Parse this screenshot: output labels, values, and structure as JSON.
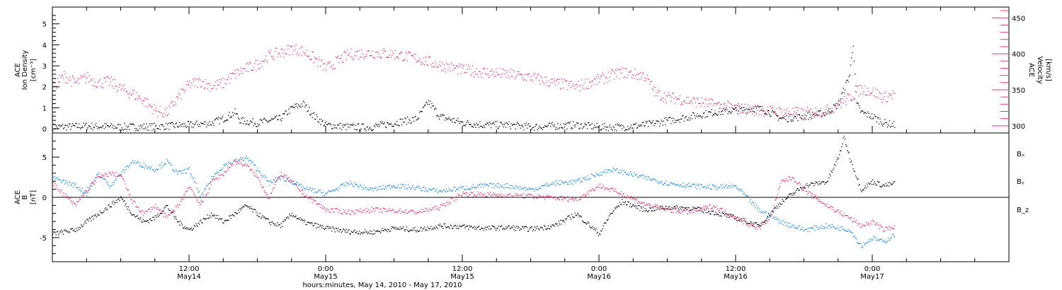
{
  "chart_data": [
    {
      "type": "scatter",
      "panel": "top",
      "ylabel_left": [
        "ACE",
        "Ion Density",
        "[cm⁻³]"
      ],
      "ylabel_right": [
        "ACE",
        "Velocity",
        "[km/s]"
      ],
      "ylim_left": [
        -0.2,
        5.8
      ],
      "ylim_right": [
        290,
        465
      ],
      "yticks_left": [
        0,
        1,
        2,
        3,
        4,
        5
      ],
      "yticks_right": [
        300,
        350,
        400,
        450
      ],
      "series": [
        {
          "axis": "left",
          "color": "#000000",
          "points": [
            [
              0,
              0.1
            ],
            [
              3,
              0.15
            ],
            [
              6,
              0.1
            ],
            [
              9,
              0.12
            ],
            [
              12,
              0.2
            ],
            [
              14,
              0.3
            ],
            [
              15,
              0.5
            ],
            [
              16,
              0.8
            ],
            [
              16.5,
              0.4
            ],
            [
              18,
              0.3
            ],
            [
              20,
              0.5
            ],
            [
              21,
              1.0
            ],
            [
              22,
              1.2
            ],
            [
              23,
              0.6
            ],
            [
              24,
              0.2
            ],
            [
              26,
              0.1
            ],
            [
              28,
              0.1
            ],
            [
              30,
              0.3
            ],
            [
              32,
              0.5
            ],
            [
              33,
              1.3
            ],
            [
              34,
              0.6
            ],
            [
              36,
              0.3
            ],
            [
              38,
              0.2
            ],
            [
              40,
              0.2
            ],
            [
              42,
              0.1
            ],
            [
              44,
              0.15
            ],
            [
              46,
              0.2
            ],
            [
              48,
              0.1
            ],
            [
              50,
              0.1
            ],
            [
              52,
              0.2
            ],
            [
              54,
              0.4
            ],
            [
              56,
              0.6
            ],
            [
              58,
              0.8
            ],
            [
              60,
              0.9
            ],
            [
              62,
              1.0
            ],
            [
              63,
              0.8
            ],
            [
              64,
              0.5
            ],
            [
              66,
              0.6
            ],
            [
              68,
              0.8
            ],
            [
              69,
              1.2
            ],
            [
              70,
              2.6
            ],
            [
              70.3,
              4.1
            ],
            [
              70.6,
              1.2
            ],
            [
              71,
              0.8
            ],
            [
              72,
              0.6
            ],
            [
              73,
              0.3
            ],
            [
              74,
              0.2
            ]
          ]
        },
        {
          "axis": "right",
          "color": "#e8336a",
          "points": [
            [
              0,
              355
            ],
            [
              1,
              370
            ],
            [
              2,
              360
            ],
            [
              3,
              368
            ],
            [
              4,
              360
            ],
            [
              5,
              362
            ],
            [
              6,
              352
            ],
            [
              7,
              345
            ],
            [
              8,
              336
            ],
            [
              9,
              322
            ],
            [
              10,
              318
            ],
            [
              11,
              340
            ],
            [
              12,
              358
            ],
            [
              13,
              362
            ],
            [
              14,
              355
            ],
            [
              15,
              360
            ],
            [
              16,
              372
            ],
            [
              17,
              380
            ],
            [
              18,
              386
            ],
            [
              19,
              398
            ],
            [
              20,
              402
            ],
            [
              21,
              408
            ],
            [
              22,
              404
            ],
            [
              23,
              394
            ],
            [
              24,
              380
            ],
            [
              26,
              400
            ],
            [
              28,
              402
            ],
            [
              30,
              400
            ],
            [
              32,
              394
            ],
            [
              34,
              385
            ],
            [
              36,
              378
            ],
            [
              38,
              375
            ],
            [
              40,
              372
            ],
            [
              42,
              368
            ],
            [
              44,
              360
            ],
            [
              46,
              355
            ],
            [
              48,
              365
            ],
            [
              50,
              375
            ],
            [
              52,
              370
            ],
            [
              53,
              345
            ],
            [
              54,
              340
            ],
            [
              55,
              338
            ],
            [
              56,
              335
            ],
            [
              58,
              330
            ],
            [
              60,
              325
            ],
            [
              62,
              322
            ],
            [
              64,
              320
            ],
            [
              66,
              318
            ],
            [
              67,
              320
            ],
            [
              68,
              322
            ],
            [
              69,
              330
            ],
            [
              70,
              340
            ],
            [
              71,
              352
            ],
            [
              72,
              348
            ],
            [
              73,
              340
            ],
            [
              74,
              345
            ]
          ]
        }
      ]
    },
    {
      "type": "scatter",
      "panel": "bottom",
      "ylabel": [
        "ACE",
        "B",
        "[nT]"
      ],
      "ylim": [
        -8,
        8
      ],
      "yticks": [
        -5,
        0,
        5
      ],
      "legend": [
        "Bₓ",
        "Bᵧ",
        "B_z"
      ],
      "legend_position": "right",
      "series": [
        {
          "name": "Bx",
          "color": "#000000",
          "points": [
            [
              0,
              -4.5
            ],
            [
              2,
              -4
            ],
            [
              3,
              -3
            ],
            [
              4,
              -2
            ],
            [
              5,
              -1
            ],
            [
              6,
              0
            ],
            [
              7,
              -2
            ],
            [
              8,
              -3
            ],
            [
              9,
              -2.5
            ],
            [
              10,
              -1
            ],
            [
              11,
              -3
            ],
            [
              12,
              -4
            ],
            [
              13,
              -3
            ],
            [
              14,
              -2
            ],
            [
              15,
              -3
            ],
            [
              16,
              -2
            ],
            [
              17,
              -1
            ],
            [
              18,
              -2
            ],
            [
              19,
              -3
            ],
            [
              20,
              -3.5
            ],
            [
              21,
              -2
            ],
            [
              22,
              -3
            ],
            [
              24,
              -3.8
            ],
            [
              26,
              -4.2
            ],
            [
              28,
              -4.3
            ],
            [
              30,
              -3.8
            ],
            [
              32,
              -4
            ],
            [
              34,
              -3.5
            ],
            [
              36,
              -3.6
            ],
            [
              38,
              -3.8
            ],
            [
              40,
              -3.7
            ],
            [
              42,
              -3.9
            ],
            [
              44,
              -3.5
            ],
            [
              46,
              -2
            ],
            [
              48,
              -4.5
            ],
            [
              49,
              -2
            ],
            [
              50,
              -0.5
            ],
            [
              52,
              -1.5
            ],
            [
              54,
              -1.2
            ],
            [
              56,
              -1.3
            ],
            [
              58,
              -1.8
            ],
            [
              60,
              -2.5
            ],
            [
              61,
              -3
            ],
            [
              62,
              -3.5
            ],
            [
              64,
              -0.5
            ],
            [
              66,
              1.5
            ],
            [
              68,
              2
            ],
            [
              69,
              5
            ],
            [
              69.5,
              7.5
            ],
            [
              70,
              5
            ],
            [
              71,
              1
            ],
            [
              72,
              2
            ],
            [
              73,
              1.5
            ],
            [
              74,
              1.8
            ]
          ]
        },
        {
          "name": "By",
          "color": "#1e88e5",
          "points": [
            [
              0,
              2.5
            ],
            [
              2,
              1.5
            ],
            [
              3,
              0.5
            ],
            [
              4,
              3
            ],
            [
              5,
              1.5
            ],
            [
              6,
              3
            ],
            [
              7,
              4.5
            ],
            [
              8,
              4
            ],
            [
              9,
              3.5
            ],
            [
              10,
              4.5
            ],
            [
              11,
              3
            ],
            [
              12,
              3.5
            ],
            [
              13,
              0
            ],
            [
              14,
              2.5
            ],
            [
              15,
              4
            ],
            [
              16,
              4.5
            ],
            [
              17,
              5
            ],
            [
              18,
              3.5
            ],
            [
              19,
              1.8
            ],
            [
              20,
              2.5
            ],
            [
              21,
              2
            ],
            [
              22,
              1.2
            ],
            [
              24,
              0.5
            ],
            [
              26,
              1.8
            ],
            [
              28,
              1
            ],
            [
              30,
              1.5
            ],
            [
              32,
              1.2
            ],
            [
              34,
              0.8
            ],
            [
              36,
              1.2
            ],
            [
              38,
              1.5
            ],
            [
              40,
              1.5
            ],
            [
              42,
              1
            ],
            [
              44,
              1.8
            ],
            [
              46,
              2
            ],
            [
              48,
              3
            ],
            [
              49,
              3.5
            ],
            [
              50,
              3.2
            ],
            [
              52,
              2.5
            ],
            [
              54,
              1.8
            ],
            [
              56,
              1.5
            ],
            [
              58,
              1.3
            ],
            [
              60,
              1.4
            ],
            [
              61,
              0
            ],
            [
              62,
              -1.5
            ],
            [
              64,
              -3
            ],
            [
              66,
              -4
            ],
            [
              68,
              -3.5
            ],
            [
              70,
              -4
            ],
            [
              71,
              -6
            ],
            [
              72,
              -5
            ],
            [
              73,
              -5.5
            ],
            [
              74,
              -4.5
            ]
          ]
        },
        {
          "name": "Bz",
          "color": "#e8336a",
          "points": [
            [
              0,
              1.8
            ],
            [
              2,
              -1
            ],
            [
              3,
              1
            ],
            [
              4,
              2.5
            ],
            [
              5,
              3
            ],
            [
              6,
              2.8
            ],
            [
              7,
              -0.5
            ],
            [
              8,
              -2
            ],
            [
              9,
              -1
            ],
            [
              10,
              -2.5
            ],
            [
              11,
              -1
            ],
            [
              12,
              1.5
            ],
            [
              13,
              -1
            ],
            [
              14,
              2
            ],
            [
              15,
              3
            ],
            [
              16,
              4.5
            ],
            [
              17,
              4
            ],
            [
              18,
              2.5
            ],
            [
              19,
              0
            ],
            [
              20,
              3
            ],
            [
              21,
              2
            ],
            [
              22,
              0.5
            ],
            [
              24,
              -1.5
            ],
            [
              26,
              -1.8
            ],
            [
              28,
              -1.5
            ],
            [
              30,
              -1.6
            ],
            [
              32,
              -1.8
            ],
            [
              34,
              -1.2
            ],
            [
              36,
              0.5
            ],
            [
              38,
              0.4
            ],
            [
              40,
              0.3
            ],
            [
              42,
              0.2
            ],
            [
              44,
              0
            ],
            [
              46,
              -0.2
            ],
            [
              48,
              1.5
            ],
            [
              49,
              1
            ],
            [
              50,
              0.5
            ],
            [
              52,
              -0.8
            ],
            [
              54,
              -1.5
            ],
            [
              56,
              -1.8
            ],
            [
              58,
              -1
            ],
            [
              60,
              -2.5
            ],
            [
              61,
              -3.2
            ],
            [
              62,
              -3.8
            ],
            [
              63,
              -2.5
            ],
            [
              64,
              2
            ],
            [
              65,
              2.5
            ],
            [
              66,
              1
            ],
            [
              68,
              -1
            ],
            [
              70,
              -2.5
            ],
            [
              71,
              -3.5
            ],
            [
              72,
              -3
            ],
            [
              73,
              -4
            ],
            [
              74,
              -3.5
            ]
          ]
        }
      ]
    }
  ],
  "x_axis": {
    "xlabel": "hours:minutes, May 14, 2010 - May 17, 2010",
    "tick_labels": [
      {
        "hours": 12,
        "time": "12:00",
        "date": "May14"
      },
      {
        "hours": 24,
        "time": "0:00",
        "date": "May15"
      },
      {
        "hours": 36,
        "time": "12:00",
        "date": "May15"
      },
      {
        "hours": 48,
        "time": "0:00",
        "date": "May16"
      },
      {
        "hours": 60,
        "time": "12:00",
        "date": "May16"
      },
      {
        "hours": 72,
        "time": "0:00",
        "date": "May17"
      }
    ]
  }
}
